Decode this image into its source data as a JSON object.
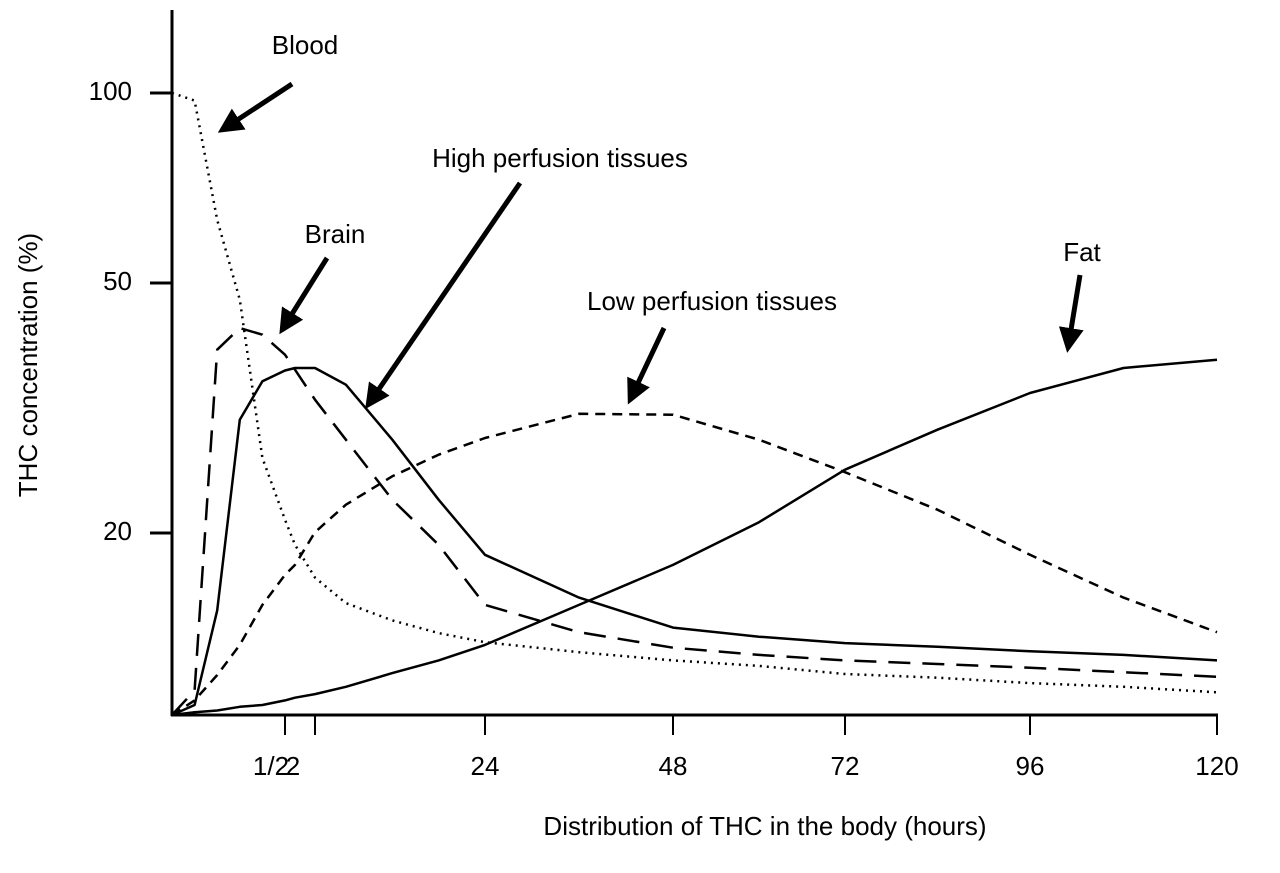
{
  "chart_data": {
    "type": "line",
    "x_label": "Distribution of THC in the body (hours)",
    "y_label": "THC concentration (%)",
    "x": [
      0,
      0.1,
      0.2,
      0.3,
      0.4,
      0.5,
      1,
      2,
      6,
      12,
      18,
      24,
      36,
      48,
      60,
      72,
      84,
      96,
      108,
      120
    ],
    "series": [
      {
        "name": "Blood",
        "color": "#000000",
        "dash": "dotted",
        "values": [
          100,
          98,
          66.6,
          48,
          29,
          21.6,
          18.7,
          15.1,
          12.3,
          10.4,
          9.0,
          8.0,
          6.9,
          6.0,
          5.4,
          4.5,
          4.1,
          3.5,
          3.1,
          2.5
        ]
      },
      {
        "name": "Brain",
        "color": "#000000",
        "dash": "long-dash",
        "values": [
          0,
          2.7,
          42,
          44.6,
          43.8,
          41.4,
          39.6,
          36,
          31.2,
          24,
          18.7,
          12.1,
          9.1,
          7.4,
          6.6,
          6.0,
          5.6,
          5.2,
          4.7,
          4.2
        ]
      },
      {
        "name": "High perfusion tissues",
        "color": "#000000",
        "dash": "solid",
        "values": [
          0,
          1.1,
          11.5,
          33.6,
          38.2,
          39.5,
          39.8,
          39.8,
          37.8,
          31.2,
          24,
          17.6,
          12.9,
          9.6,
          8.6,
          7.9,
          7.5,
          7.0,
          6.6,
          6.0
        ]
      },
      {
        "name": "Low perfusion tissues",
        "color": "#000000",
        "dash": "short-dash",
        "values": [
          0,
          1.6,
          4.4,
          7.7,
          12.1,
          15.4,
          16.5,
          20.1,
          23.4,
          26.8,
          29.4,
          31.4,
          34.3,
          34.2,
          31.2,
          27.3,
          22.8,
          17.6,
          12.9,
          9.1
        ]
      },
      {
        "name": "Fat",
        "color": "#000000",
        "dash": "solid",
        "values": [
          0,
          0.3,
          0.5,
          0.9,
          1.1,
          1.6,
          1.9,
          2.3,
          3.1,
          4.6,
          6.0,
          7.7,
          12.1,
          16.5,
          21.3,
          27.6,
          32.4,
          36.8,
          39.8,
          40.8
        ]
      }
    ],
    "xlim": [
      0,
      120
    ],
    "xticks": [
      {
        "value": 0.5,
        "label": "1/2"
      },
      2,
      24,
      48,
      72,
      96,
      120
    ],
    "ylim": [
      0,
      120
    ],
    "yticks": [
      20,
      50,
      100
    ],
    "grid": false
  }
}
